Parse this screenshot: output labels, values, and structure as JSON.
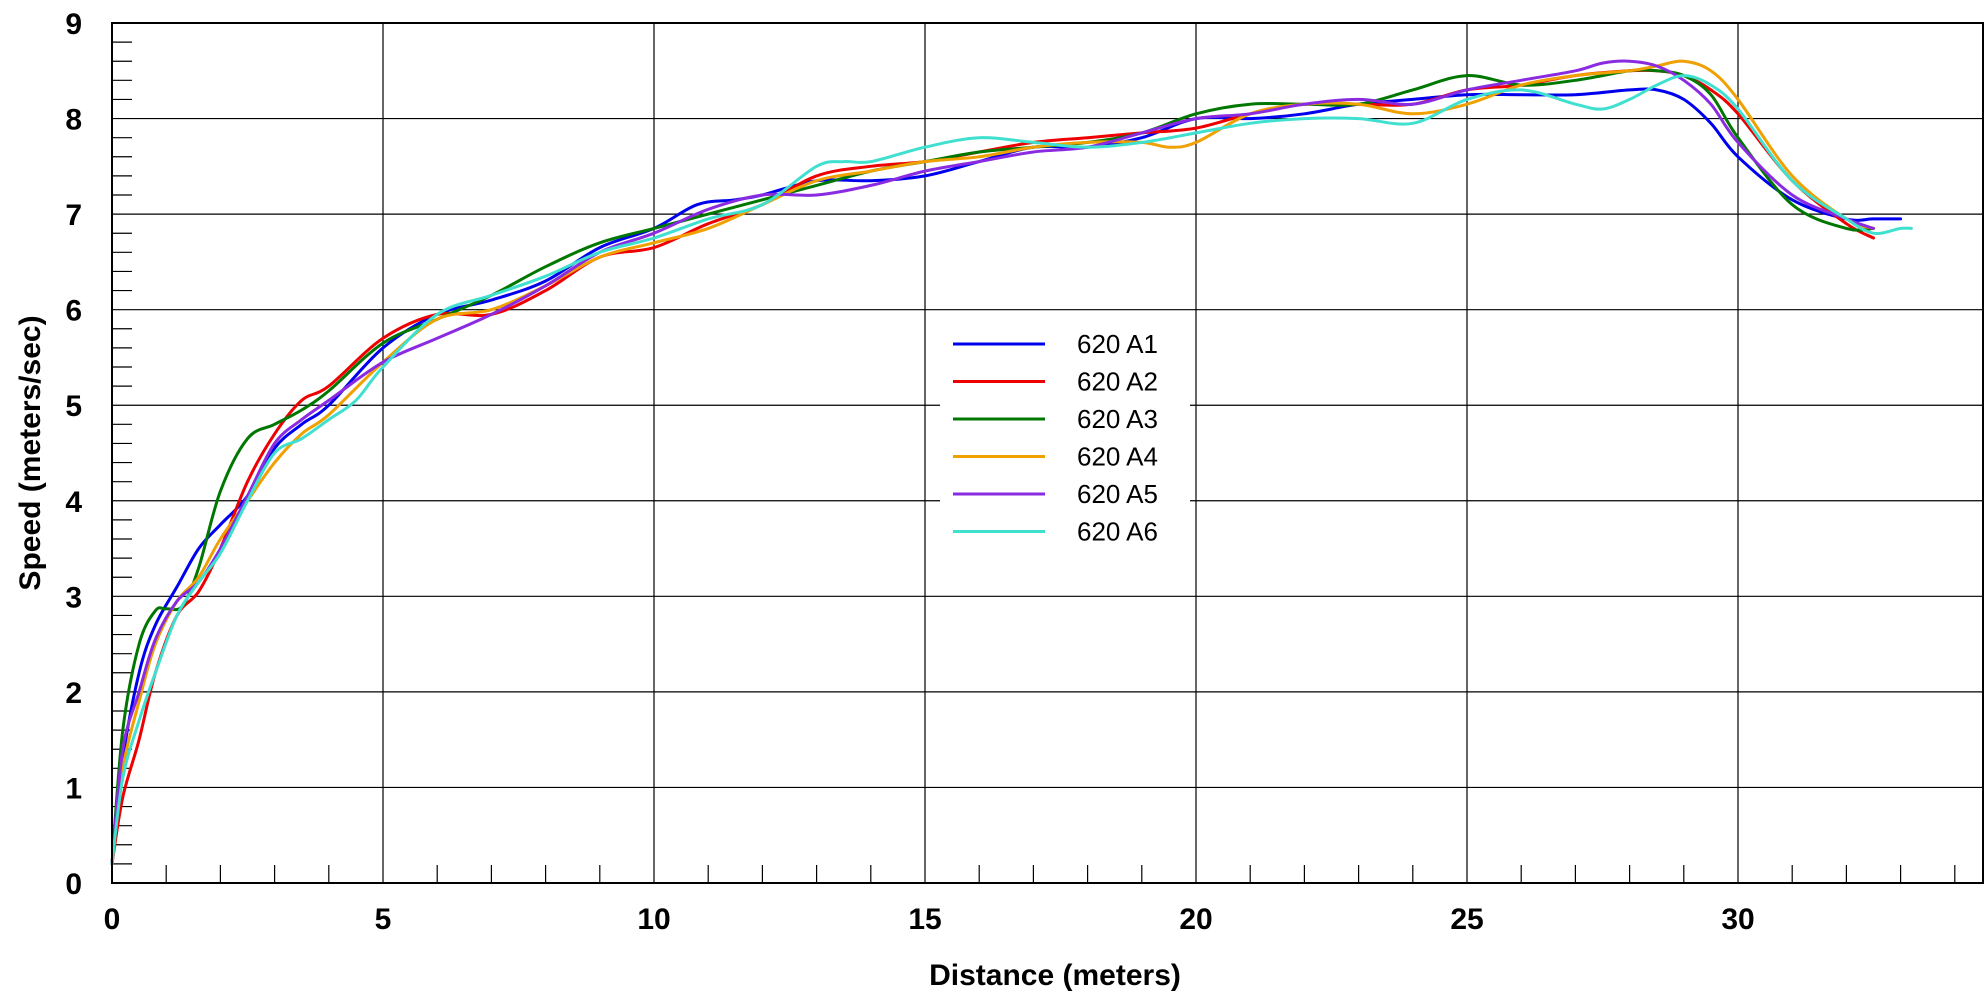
{
  "chart_data": {
    "type": "line",
    "xlabel": "Distance (meters)",
    "ylabel": "Speed (meters/sec)",
    "xlim": [
      0,
      34
    ],
    "ylim": [
      0,
      9
    ],
    "x_ticks": [
      0,
      5,
      10,
      15,
      20,
      25,
      30
    ],
    "y_ticks": [
      0,
      1,
      2,
      3,
      4,
      5,
      6,
      7,
      8,
      9
    ],
    "grid": true,
    "legend_position": "center",
    "series": [
      {
        "name": "620 A1",
        "color": "#0000ee",
        "x": [
          0,
          0.2,
          0.5,
          0.8,
          1.2,
          1.6,
          2,
          2.5,
          3,
          3.5,
          4,
          5,
          6,
          7,
          8,
          9,
          10,
          10.8,
          11.5,
          12,
          13,
          14,
          15,
          16,
          17,
          18,
          19,
          20,
          21,
          22,
          23,
          24,
          25,
          26,
          27,
          28,
          28.5,
          29,
          29.5,
          30,
          31,
          32,
          32.5,
          33
        ],
        "y": [
          0.2,
          1.3,
          2.2,
          2.7,
          3.1,
          3.5,
          3.75,
          4.05,
          4.55,
          4.8,
          5.0,
          5.6,
          5.95,
          6.1,
          6.3,
          6.65,
          6.85,
          7.1,
          7.15,
          7.2,
          7.35,
          7.35,
          7.4,
          7.55,
          7.7,
          7.7,
          7.8,
          8.0,
          8.0,
          8.05,
          8.15,
          8.2,
          8.25,
          8.25,
          8.25,
          8.3,
          8.3,
          8.2,
          7.95,
          7.6,
          7.15,
          6.95,
          6.95,
          6.95
        ]
      },
      {
        "name": "620 A2",
        "color": "#ee0000",
        "x": [
          0,
          0.2,
          0.5,
          0.8,
          1.2,
          1.6,
          2,
          2.5,
          3,
          3.5,
          4,
          5,
          6,
          7,
          8,
          9,
          10,
          11,
          12,
          13,
          14,
          15,
          16,
          17,
          18,
          19,
          20,
          21,
          22,
          23,
          24,
          25,
          26,
          27,
          28,
          28.5,
          29,
          29.5,
          30,
          31,
          32,
          32.5
        ],
        "y": [
          0.2,
          0.9,
          1.5,
          2.2,
          2.8,
          3.05,
          3.5,
          4.2,
          4.7,
          5.05,
          5.2,
          5.7,
          5.95,
          5.95,
          6.2,
          6.55,
          6.65,
          6.9,
          7.1,
          7.4,
          7.5,
          7.55,
          7.65,
          7.75,
          7.8,
          7.85,
          7.9,
          8.05,
          8.15,
          8.15,
          8.15,
          8.3,
          8.35,
          8.45,
          8.5,
          8.5,
          8.45,
          8.3,
          8.05,
          7.35,
          6.9,
          6.75
        ]
      },
      {
        "name": "620 A3",
        "color": "#007700",
        "x": [
          0,
          0.2,
          0.5,
          0.8,
          1.0,
          1.3,
          1.6,
          2,
          2.5,
          3,
          3.5,
          4,
          5,
          6,
          7,
          8,
          9,
          10,
          11,
          12,
          13,
          14,
          15,
          16,
          17,
          18,
          19,
          20,
          21,
          22,
          23,
          24,
          25,
          26,
          27,
          28,
          28.5,
          29,
          29.5,
          30,
          31,
          32,
          32.5
        ],
        "y": [
          0.2,
          1.6,
          2.5,
          2.85,
          2.87,
          2.9,
          3.3,
          4.1,
          4.65,
          4.8,
          4.95,
          5.15,
          5.65,
          5.9,
          6.15,
          6.45,
          6.7,
          6.85,
          7.0,
          7.15,
          7.3,
          7.45,
          7.55,
          7.65,
          7.7,
          7.75,
          7.85,
          8.05,
          8.15,
          8.15,
          8.15,
          8.3,
          8.45,
          8.35,
          8.4,
          8.5,
          8.5,
          8.45,
          8.25,
          7.8,
          7.1,
          6.85,
          6.85
        ]
      },
      {
        "name": "620 A4",
        "color": "#f0a000",
        "x": [
          0,
          0.2,
          0.5,
          0.8,
          1.2,
          1.6,
          2,
          2.5,
          3,
          3.5,
          4,
          5,
          6,
          7,
          8,
          9,
          10,
          11,
          12,
          13,
          14,
          15,
          16,
          17,
          18,
          19,
          19.5,
          20,
          21,
          22,
          23,
          24,
          25,
          26,
          27,
          28,
          28.5,
          29,
          29.5,
          30,
          31,
          32,
          32.5
        ],
        "y": [
          0.2,
          1.2,
          1.9,
          2.5,
          2.95,
          3.2,
          3.6,
          4.0,
          4.4,
          4.7,
          4.9,
          5.45,
          5.9,
          6.0,
          6.25,
          6.55,
          6.7,
          6.85,
          7.1,
          7.35,
          7.45,
          7.55,
          7.6,
          7.7,
          7.75,
          7.75,
          7.7,
          7.75,
          8.05,
          8.15,
          8.15,
          8.05,
          8.15,
          8.35,
          8.45,
          8.5,
          8.55,
          8.6,
          8.5,
          8.2,
          7.4,
          6.95,
          6.85
        ]
      },
      {
        "name": "620 A5",
        "color": "#8a2be2",
        "x": [
          0,
          0.2,
          0.5,
          0.8,
          1.2,
          1.6,
          2,
          2.5,
          3,
          3.5,
          4,
          5,
          6,
          7,
          8,
          9,
          10,
          11,
          12,
          13,
          14,
          15,
          16,
          17,
          18,
          19,
          20,
          21,
          22,
          23,
          24,
          25,
          26,
          27,
          27.5,
          28,
          28.5,
          29,
          29.5,
          30,
          31,
          32,
          32.5
        ],
        "y": [
          0.2,
          1.4,
          2.0,
          2.55,
          2.95,
          3.15,
          3.5,
          4.05,
          4.6,
          4.85,
          5.05,
          5.45,
          5.7,
          5.95,
          6.25,
          6.6,
          6.8,
          7.05,
          7.2,
          7.2,
          7.3,
          7.45,
          7.55,
          7.65,
          7.7,
          7.85,
          8.0,
          8.05,
          8.15,
          8.2,
          8.15,
          8.3,
          8.4,
          8.5,
          8.58,
          8.6,
          8.55,
          8.4,
          8.15,
          7.75,
          7.2,
          6.95,
          6.85
        ]
      },
      {
        "name": "620 A6",
        "color": "#40e0d0",
        "x": [
          0,
          0.2,
          0.5,
          0.8,
          1.2,
          1.6,
          2,
          2.5,
          3,
          3.5,
          4,
          4.5,
          5,
          6,
          7,
          8,
          9,
          10,
          11,
          12,
          13,
          13.5,
          14,
          15,
          16,
          17,
          18,
          19,
          20,
          21,
          22,
          23,
          24,
          25,
          26,
          27,
          27.5,
          28,
          28.5,
          29,
          29.5,
          30,
          31,
          32,
          32.5,
          33,
          33.2
        ],
        "y": [
          0.2,
          1.1,
          1.7,
          2.2,
          2.8,
          3.15,
          3.45,
          4.0,
          4.5,
          4.65,
          4.85,
          5.05,
          5.4,
          5.95,
          6.15,
          6.35,
          6.6,
          6.75,
          6.95,
          7.1,
          7.5,
          7.55,
          7.55,
          7.7,
          7.8,
          7.75,
          7.7,
          7.75,
          7.85,
          7.95,
          8.0,
          8.0,
          7.95,
          8.2,
          8.3,
          8.15,
          8.1,
          8.2,
          8.35,
          8.45,
          8.35,
          8.1,
          7.35,
          6.95,
          6.8,
          6.85,
          6.85
        ]
      }
    ]
  }
}
